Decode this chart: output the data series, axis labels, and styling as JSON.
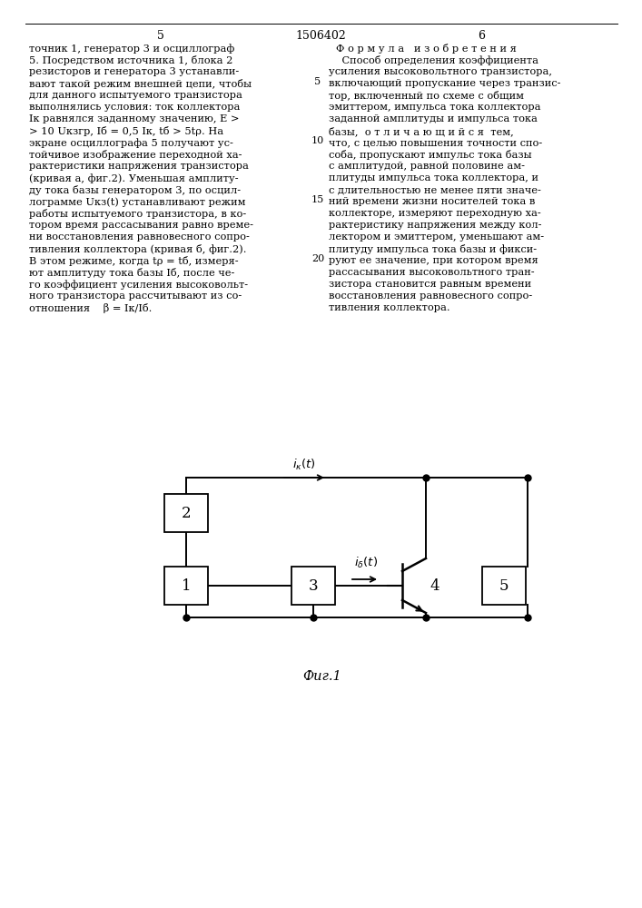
{
  "title_number": "1506402",
  "page_left": "5",
  "page_right": "6",
  "formula_title": "Ф о р м у л а   и з о б р е т е н и я",
  "left_text": [
    "точник 1, генератор 3 и осциллограф",
    "5. Посредством источника 1, блока 2",
    "резисторов и генератора 3 устанавли-",
    "вают такой режим внешней цепи, чтобы",
    "для данного испытуемого транзистора",
    "выполнялись условия: ток коллектора",
    "Iк равнялся заданному значению, E >",
    "> 10 Uкзгр, Iб = 0,5 Iк, tб > 5tρ. На",
    "экране осциллографа 5 получают ус-",
    "тойчивое изображение переходной ха-",
    "рактеристики напряжения транзистора",
    "(кривая а, фиг.2). Уменьшая амплиту-",
    "ду тока базы генератором 3, по осцил-",
    "лограмме Uкз(t) устанавливают режим",
    "работы испытуемого транзистора, в ко-",
    "тором время рассасывания равно време-",
    "ни восстановления равновесного сопро-",
    "тивления коллектора (кривая б, фиг.2).",
    "В этом режиме, когда tρ = tб, измеря-",
    "ют амплитуду тока базы Iб, после че-",
    "го коэффициент усиления высоковольт-",
    "ного транзистора рассчитывают из со-",
    "отношения    β = Iк/Iб."
  ],
  "right_text": [
    "    Способ определения коэффициента",
    "усиления высоковольтного транзистора,",
    "включающий пропускание через транзис-",
    "тор, включенный по схеме с общим",
    "эмиттером, импульса тока коллектора",
    "заданной амплитуды и импульса тока",
    "базы,  о т л и ч а ю щ и й с я  тем,",
    "что, с целью повышения точности спо-",
    "соба, пропускают импульс тока базы",
    "с амплитудой, равной половине ам-",
    "плитуды импульса тока коллектора, и",
    "с длительностью не менее пяти значе-",
    "ний времени жизни носителей тока в",
    "коллекторе, измеряют переходную ха-",
    "рактеристику напряжения между кол-",
    "лектором и эмиттером, уменьшают ам-",
    "плитуду импульса тока базы и фикси-",
    "руют ее значение, при котором время",
    "рассасывания высоковольтного тран-",
    "зистора становится равным времени",
    "восстановления равновесного сопро-",
    "тивления коллектора."
  ],
  "fig_caption": "Фиг.1",
  "background_color": "#ffffff",
  "text_color": "#000000",
  "box_color": "#000000",
  "line_color": "#000000"
}
